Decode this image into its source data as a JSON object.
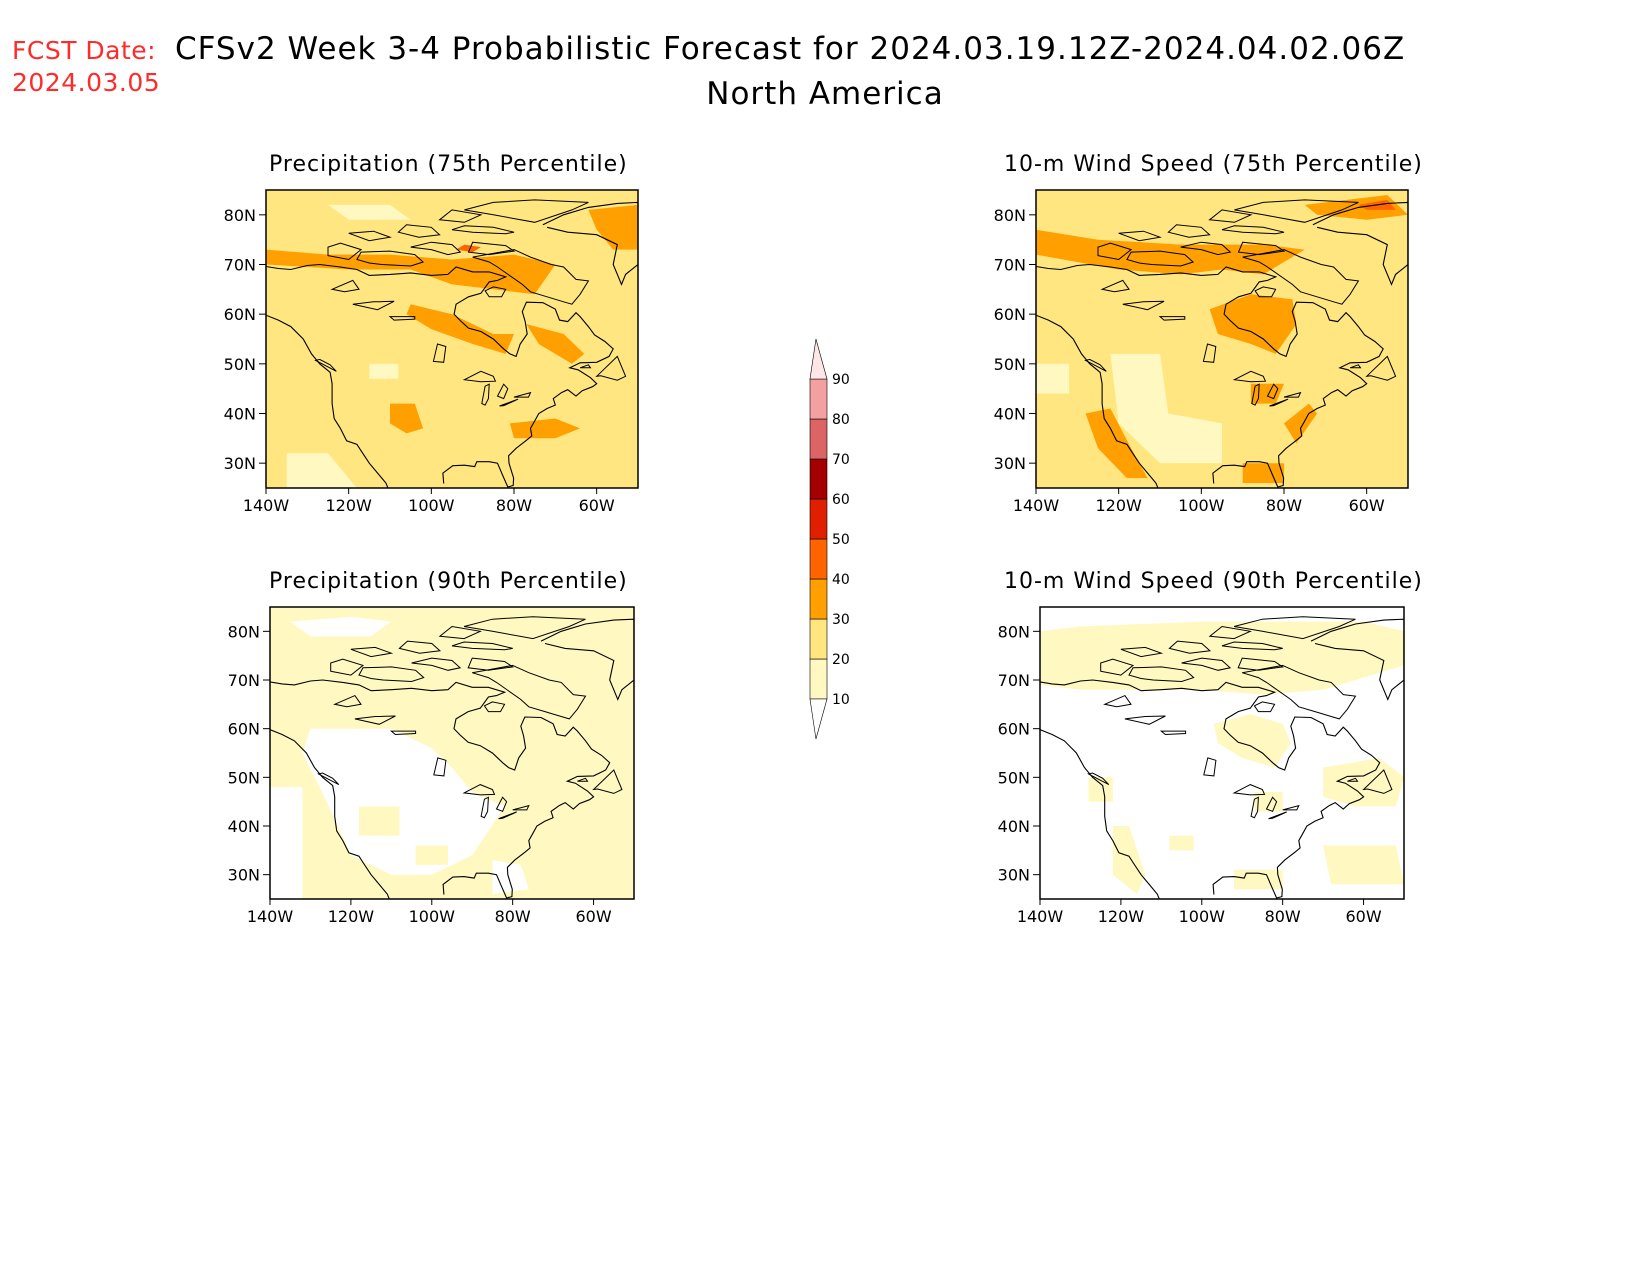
{
  "header": {
    "fcst_label": "FCST Date:",
    "fcst_date": "2024.03.05",
    "title": "CFSv2 Week 3-4 Probabilistic Forecast for 2024.03.19.12Z-2024.04.02.06Z",
    "subtitle": "North America"
  },
  "axes": {
    "lat_labels": [
      "80N",
      "70N",
      "60N",
      "50N",
      "40N",
      "30N"
    ],
    "lon_labels": [
      "140W",
      "120W",
      "100W",
      "80W",
      "60W"
    ],
    "lat_values": [
      80,
      70,
      60,
      50,
      40,
      30
    ],
    "lon_values": [
      -140,
      -120,
      -100,
      -80,
      -60
    ],
    "lat_range": [
      25,
      85
    ],
    "lon_range": [
      -140,
      -50
    ]
  },
  "panels": [
    {
      "id": "precip-75",
      "title": "Precipitation (75th Percentile)",
      "variable": "precipitation",
      "percentile": 75,
      "base_level": 20
    },
    {
      "id": "wind-75",
      "title": "10-m Wind Speed (75th Percentile)",
      "variable": "wind",
      "percentile": 75,
      "base_level": 20
    },
    {
      "id": "precip-90",
      "title": "Precipitation (90th Percentile)",
      "variable": "precipitation",
      "percentile": 90,
      "base_level": 10
    },
    {
      "id": "wind-90",
      "title": "10-m Wind Speed (90th Percentile)",
      "variable": "wind",
      "percentile": 90,
      "base_level": 0
    }
  ],
  "colorbar": {
    "labels": [
      "90",
      "80",
      "70",
      "60",
      "50",
      "40",
      "30",
      "20",
      "10"
    ],
    "levels": [
      10,
      20,
      30,
      40,
      50,
      60,
      70,
      80,
      90
    ],
    "colors": [
      "#fff8c0",
      "#ffe680",
      "#ffa000",
      "#ff6400",
      "#e01e00",
      "#a50000",
      "#dc6464",
      "#f4a0a0",
      "#ffe6e6"
    ]
  }
}
